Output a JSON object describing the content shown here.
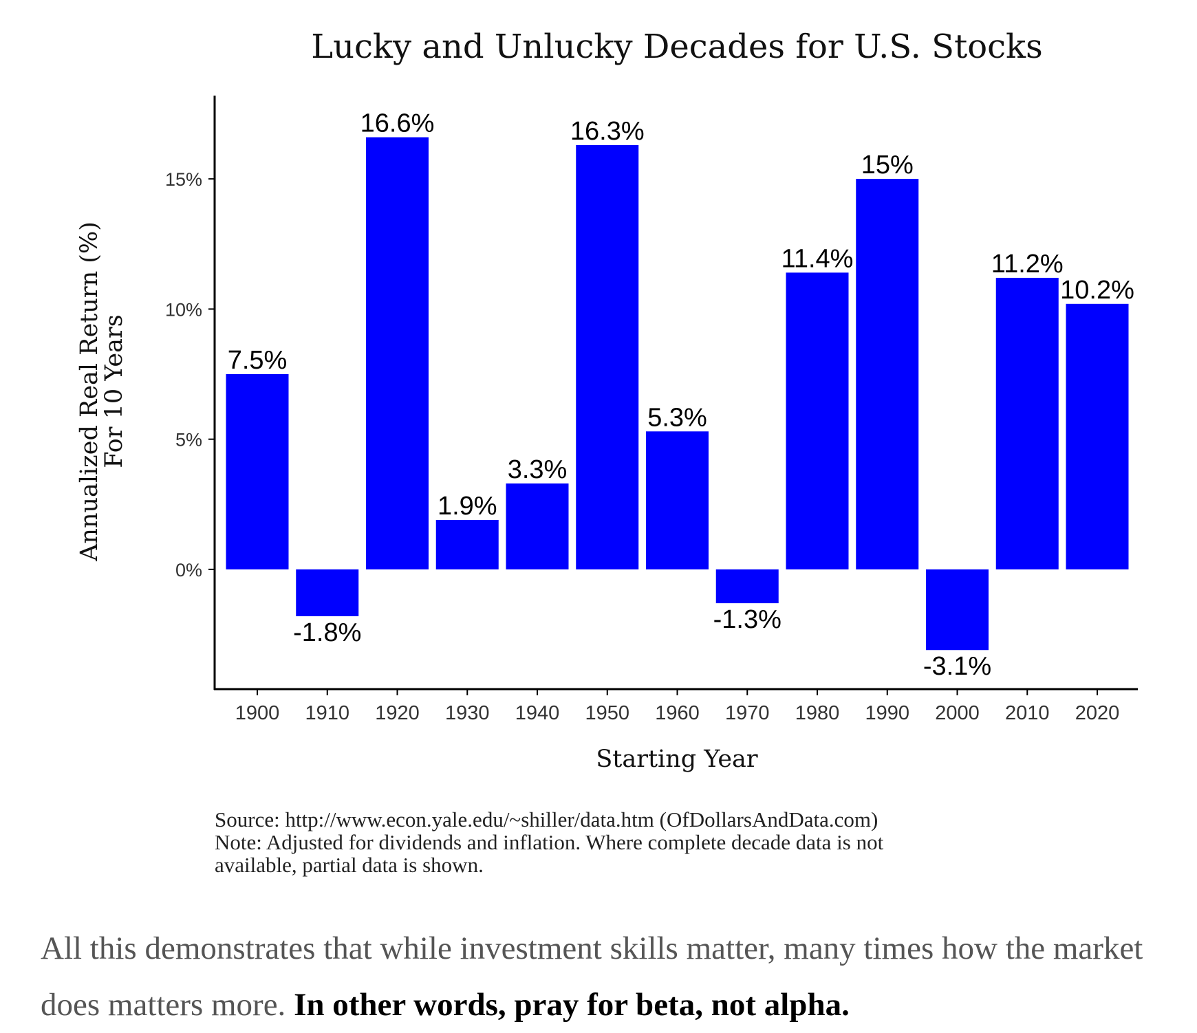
{
  "chart_data": {
    "type": "bar",
    "title": "Lucky and Unlucky Decades for U.S. Stocks",
    "xlabel": "Starting Year",
    "ylabel": [
      "Annualized Real Return (%)",
      "For 10 Years"
    ],
    "categories": [
      "1900",
      "1910",
      "1920",
      "1930",
      "1940",
      "1950",
      "1960",
      "1970",
      "1980",
      "1990",
      "2000",
      "2010",
      "2020"
    ],
    "values": [
      7.5,
      -1.8,
      16.6,
      1.9,
      3.3,
      16.3,
      5.3,
      -1.3,
      11.4,
      15,
      -3.1,
      11.2,
      10.2
    ],
    "data_labels": [
      "7.5%",
      "-1.8%",
      "16.6%",
      "1.9%",
      "3.3%",
      "16.3%",
      "5.3%",
      "-1.3%",
      "11.4%",
      "15%",
      "-3.1%",
      "11.2%",
      "10.2%"
    ],
    "yticks": [
      0,
      5,
      10,
      15
    ],
    "ytick_labels": [
      "0%",
      "5%",
      "10%",
      "15%"
    ],
    "ylim": [
      -4.6,
      18.2
    ],
    "bar_color": "#0000ff",
    "grid": false
  },
  "notes": {
    "source": "Source: http://www.econ.yale.edu/~shiller/data.htm (OfDollarsAndData.com)",
    "note_line1": "Note: Adjusted for dividends and inflation. Where complete decade data is not",
    "note_line2": "available, partial data is shown."
  },
  "paragraph": {
    "text": "All this demonstrates that while investment skills matter, many times how the market does matters more. ",
    "bold": "In other words, pray for beta, not alpha."
  }
}
